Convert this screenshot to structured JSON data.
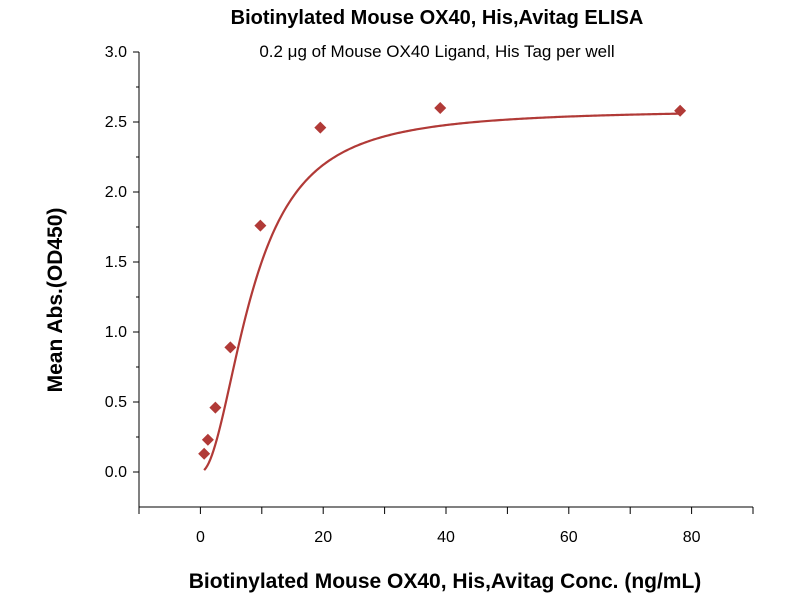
{
  "chart_data": {
    "type": "scatter",
    "title": "Biotinylated Mouse OX40, His,Avitag ELISA",
    "subtitle": "0.2 μg of Mouse OX40 Ligand, His Tag per well",
    "xlabel": "Biotinylated Mouse OX40, His,Avitag Conc. (ng/mL)",
    "ylabel": "Mean Abs.(OD450)",
    "xlim": [
      -10,
      90
    ],
    "ylim": [
      -0.25,
      3.0
    ],
    "x_ticks": [
      0,
      20,
      40,
      60,
      80
    ],
    "x_ticks_minor": [
      -10,
      10,
      30,
      50,
      70,
      90
    ],
    "y_ticks": [
      0.0,
      0.5,
      1.0,
      1.5,
      2.0,
      2.5,
      3.0
    ],
    "y_tick_labels": [
      "0.0",
      "0.5",
      "1.0",
      "1.5",
      "2.0",
      "2.5",
      "3.0"
    ],
    "x_tick_labels": [
      "0",
      "20",
      "40",
      "60",
      "80"
    ],
    "grid": false,
    "legend": "none",
    "series": [
      {
        "color": "#b13a37",
        "marker": "diamond",
        "points": [
          {
            "x": 0.61,
            "y": 0.13
          },
          {
            "x": 1.22,
            "y": 0.23
          },
          {
            "x": 2.44,
            "y": 0.46
          },
          {
            "x": 4.88,
            "y": 0.89
          },
          {
            "x": 9.77,
            "y": 1.76
          },
          {
            "x": 19.53,
            "y": 2.46
          },
          {
            "x": 39.06,
            "y": 2.6
          },
          {
            "x": 78.13,
            "y": 2.58
          }
        ],
        "fit_curve": {
          "type": "4PL",
          "bottom": 0.0,
          "top": 2.59,
          "ec50": 8.5,
          "hill": 2.0
        }
      }
    ]
  }
}
